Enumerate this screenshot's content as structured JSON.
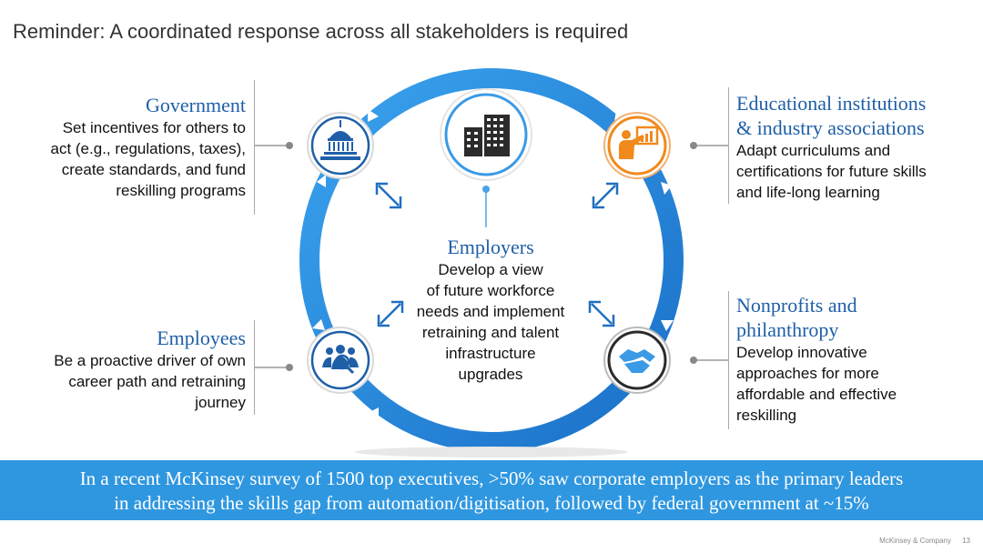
{
  "slide": {
    "title": "Reminder: A coordinated response across all stakeholders is required"
  },
  "stakeholders": {
    "government": {
      "heading": "Government",
      "lines": [
        "Set incentives for others to",
        "act (e.g., regulations, taxes),",
        "create standards, and fund",
        "reskilling programs"
      ],
      "icon": "capitol-building-icon"
    },
    "education": {
      "heading_lines": [
        "Educational institutions",
        "& industry associations"
      ],
      "lines": [
        "Adapt curriculums and",
        "certifications for future skills",
        "and life-long learning"
      ],
      "icon": "presenter-board-icon"
    },
    "employers": {
      "heading": "Employers",
      "lines": [
        "Develop a view",
        "of future workforce",
        "needs and implement",
        "retraining and talent",
        "infrastructure",
        "upgrades"
      ],
      "icon": "office-buildings-icon"
    },
    "employees": {
      "heading": "Employees",
      "lines": [
        "Be a proactive driver of own",
        "career path and retraining",
        "journey"
      ],
      "icon": "people-search-icon"
    },
    "nonprofits": {
      "heading_lines": [
        "Nonprofits and",
        "philanthropy"
      ],
      "lines": [
        "Develop innovative",
        "approaches for more",
        "affordable and effective",
        "reskilling"
      ],
      "icon": "handshake-icon"
    }
  },
  "banner": {
    "lines": [
      "In a recent McKinsey survey of 1500 top executives, >50% saw corporate employers as the primary leaders",
      "in addressing the skills gap from automation/digitisation, followed by federal government at ~15%"
    ]
  },
  "footer": {
    "company": "McKinsey & Company",
    "page": "13"
  },
  "colors": {
    "ring": "#2f8fe0",
    "ring_dark": "#1a6fc4",
    "heading": "#1f5fa8",
    "icon_blue": "#1f5fa8",
    "icon_orange": "#f08a1c",
    "banner": "#2f97e0"
  }
}
